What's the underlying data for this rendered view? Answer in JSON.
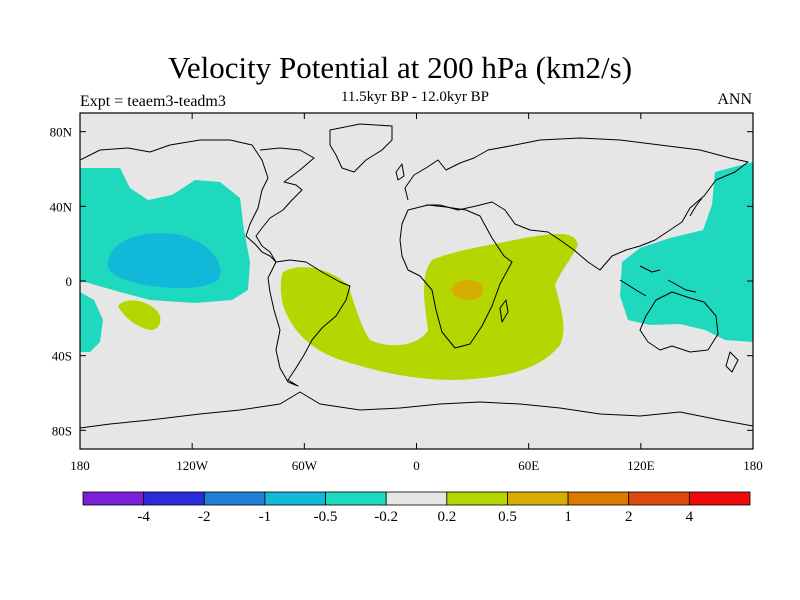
{
  "title": "Velocity Potential at 200 hPa (km2/s)",
  "subtitle": "11.5kyr BP - 12.0kyr BP",
  "left_label": "Expt = teaem3-teadm3",
  "right_label": "ANN",
  "axes": {
    "x_ticks": [
      {
        "value": -180,
        "label": "180"
      },
      {
        "value": -120,
        "label": "120W"
      },
      {
        "value": -60,
        "label": "60W"
      },
      {
        "value": 0,
        "label": "0"
      },
      {
        "value": 60,
        "label": "60E"
      },
      {
        "value": 120,
        "label": "120E"
      },
      {
        "value": 180,
        "label": "180"
      }
    ],
    "y_ticks": [
      {
        "value": 80,
        "label": "80N"
      },
      {
        "value": 40,
        "label": "40N"
      },
      {
        "value": 0,
        "label": "0"
      },
      {
        "value": -40,
        "label": "40S"
      },
      {
        "value": -80,
        "label": "80S"
      }
    ],
    "lon_range": [
      -180,
      180
    ],
    "lat_range": [
      -90,
      90
    ]
  },
  "colorbar": {
    "colors": [
      "#7b1fd8",
      "#2a2cdc",
      "#1f7fd6",
      "#12b8d8",
      "#1fd9bf",
      "#e6e6e6",
      "#b5d600",
      "#d6ad00",
      "#dc7a00",
      "#dc4a10",
      "#ee0a0a"
    ],
    "labels": [
      "-4",
      "-2",
      "-1",
      "-0.5",
      "-0.2",
      "0.2",
      "0.5",
      "1",
      "2",
      "4"
    ]
  },
  "colors": {
    "background": "#e6e6e6",
    "negative": "#1fd9bf",
    "strong_negative": "#12b8d8",
    "positive": "#b5d600",
    "strong_positive": "#d6ad00"
  }
}
